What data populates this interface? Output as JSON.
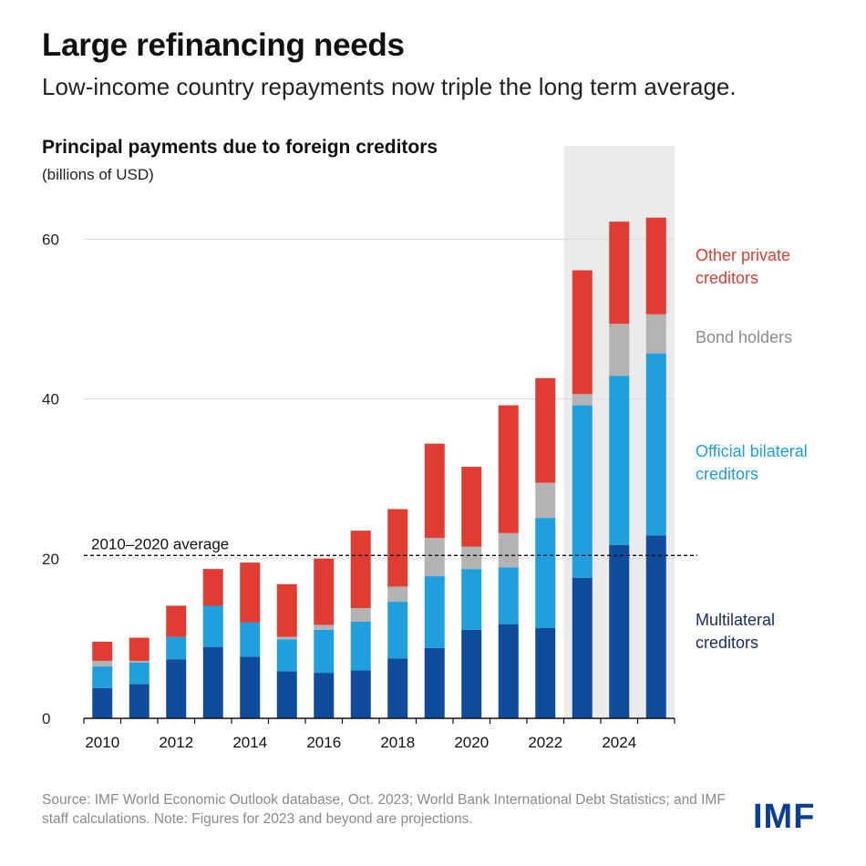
{
  "header": {
    "title": "Large refinancing needs",
    "subtitle": "Low-income country repayments now triple the long term average."
  },
  "chart_data": {
    "type": "bar",
    "stacked": true,
    "title": "Principal payments due to foreign creditors",
    "ylabel": "(billions of USD)",
    "ylim": [
      0,
      65
    ],
    "yticks": [
      0,
      20,
      40,
      60
    ],
    "grid": true,
    "categories": [
      2010,
      2011,
      2012,
      2013,
      2014,
      2015,
      2016,
      2017,
      2018,
      2019,
      2020,
      2021,
      2022,
      2023,
      2024,
      2025
    ],
    "xtick_labels": [
      "2010",
      "2012",
      "2014",
      "2016",
      "2018",
      "2020",
      "2022",
      "2024"
    ],
    "xtick_values": [
      2010,
      2012,
      2014,
      2016,
      2018,
      2020,
      2022,
      2024
    ],
    "projection_start": 2023,
    "average": {
      "label": "2010–2020 average",
      "value": 20.4
    },
    "legend_position": "right",
    "series": [
      {
        "name": "Multilateral creditors",
        "color": "#0f4c9c",
        "values": [
          3.8,
          4.3,
          7.4,
          8.9,
          7.7,
          5.9,
          5.7,
          6.0,
          7.5,
          8.8,
          11.1,
          11.8,
          11.3,
          17.6,
          21.7,
          22.9
        ]
      },
      {
        "name": "Official bilateral creditors",
        "color": "#1fa0dc",
        "values": [
          2.7,
          2.7,
          2.8,
          5.2,
          4.3,
          4.0,
          5.4,
          6.1,
          7.1,
          9.0,
          7.6,
          7.1,
          13.8,
          21.6,
          21.2,
          22.8
        ]
      },
      {
        "name": "Bond holders",
        "color": "#b3b3b3",
        "values": [
          0.7,
          0.2,
          0.0,
          0.0,
          0.0,
          0.3,
          0.6,
          1.7,
          1.9,
          4.8,
          2.8,
          4.3,
          4.4,
          1.4,
          6.5,
          4.9
        ]
      },
      {
        "name": "Other private creditors",
        "color": "#e03c31",
        "values": [
          2.4,
          2.9,
          3.9,
          4.6,
          7.5,
          6.6,
          8.3,
          9.7,
          9.7,
          11.8,
          10.0,
          16.0,
          13.1,
          15.5,
          12.8,
          12.1
        ]
      }
    ]
  },
  "legend": {
    "other_private": [
      "Other private",
      "creditors"
    ],
    "bond_holders": "Bond holders",
    "official_bilateral": [
      "Official bilateral",
      "creditors"
    ],
    "multilateral": [
      "Multilateral",
      "creditors"
    ]
  },
  "footer": {
    "source": "Source: IMF World Economic Outlook database, Oct. 2023; World Bank International Debt Statistics; and IMF staff calculations. Note: Figures for 2023 and beyond are projections.",
    "logo": "IMF"
  }
}
